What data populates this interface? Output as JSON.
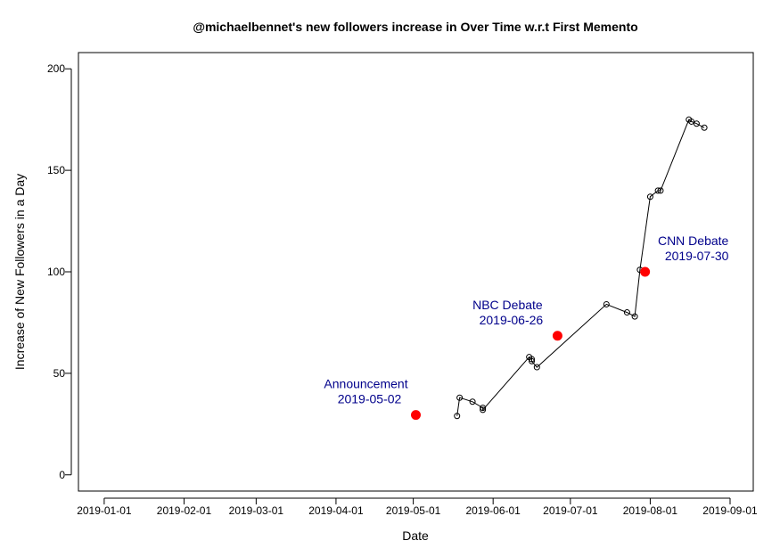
{
  "chart_data": {
    "type": "scatter",
    "title": "@michaelbennet's new followers increase in Over Time w.r.t First Memento",
    "xlabel": "Date",
    "ylabel": "Increase of New Followers in a Day",
    "xlim": [
      "2018-12-22",
      "2019-09-10"
    ],
    "ylim": [
      -8,
      208
    ],
    "x_ticks": [
      "2019-01-01",
      "2019-02-01",
      "2019-03-01",
      "2019-04-01",
      "2019-05-01",
      "2019-06-01",
      "2019-07-01",
      "2019-08-01",
      "2019-09-01"
    ],
    "y_ticks": [
      0,
      50,
      100,
      150,
      200
    ],
    "grid": false,
    "series": [
      {
        "style": "line with open circles",
        "color": "#000000",
        "points": [
          {
            "x": "2019-05-18",
            "y": 29
          },
          {
            "x": "2019-05-19",
            "y": 38
          },
          {
            "x": "2019-05-24",
            "y": 36
          },
          {
            "x": "2019-05-28",
            "y": 33
          },
          {
            "x": "2019-05-28",
            "y": 32
          },
          {
            "x": "2019-06-15",
            "y": 58
          },
          {
            "x": "2019-06-16",
            "y": 57
          },
          {
            "x": "2019-06-16",
            "y": 56
          },
          {
            "x": "2019-06-18",
            "y": 53
          },
          {
            "x": "2019-07-15",
            "y": 84
          },
          {
            "x": "2019-07-23",
            "y": 80
          },
          {
            "x": "2019-07-26",
            "y": 78
          },
          {
            "x": "2019-07-28",
            "y": 101
          },
          {
            "x": "2019-08-01",
            "y": 137
          },
          {
            "x": "2019-08-04",
            "y": 140
          },
          {
            "x": "2019-08-05",
            "y": 140
          },
          {
            "x": "2019-08-16",
            "y": 175
          },
          {
            "x": "2019-08-17",
            "y": 174
          },
          {
            "x": "2019-08-19",
            "y": 173
          },
          {
            "x": "2019-08-22",
            "y": 171
          }
        ]
      }
    ],
    "annotations": [
      {
        "line1": "Announcement",
        "line2": "2019-05-02",
        "x": "2019-05-02",
        "y": 29.5,
        "color": "#00008b",
        "marker_color": "#ff0000",
        "text_side": "left"
      },
      {
        "line1": "NBC Debate",
        "line2": "2019-06-26",
        "x": "2019-06-26",
        "y": 68.5,
        "color": "#00008b",
        "marker_color": "#ff0000",
        "text_side": "left"
      },
      {
        "line1": "CNN Debate",
        "line2": "2019-07-30",
        "x": "2019-07-30",
        "y": 100,
        "color": "#00008b",
        "marker_color": "#ff0000",
        "text_side": "right"
      }
    ]
  }
}
